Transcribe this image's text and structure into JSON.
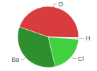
{
  "chart_data": {
    "type": "pie",
    "categories": [
      "O",
      "H",
      "Cl",
      "Ba"
    ],
    "values": [
      45,
      1,
      20,
      34
    ],
    "colors": [
      "#d93c3c",
      "#e6e6f5",
      "#40d040",
      "#2e8f2e"
    ]
  }
}
